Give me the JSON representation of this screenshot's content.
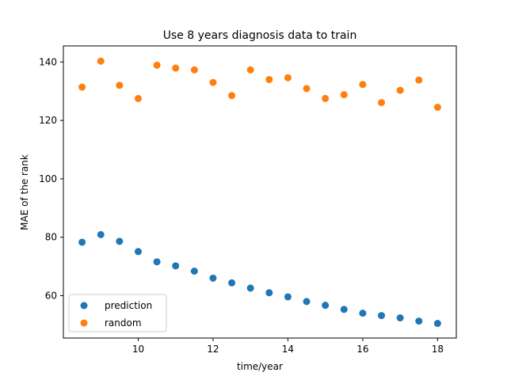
{
  "chart_data": {
    "type": "scatter",
    "title": "Use 8 years diagnosis data to train",
    "xlabel": "time/year",
    "ylabel": "MAE of the rank",
    "xlim": [
      8.0,
      18.5
    ],
    "ylim": [
      45.5,
      145.5
    ],
    "xticks": [
      10,
      12,
      14,
      16,
      18
    ],
    "yticks": [
      60,
      80,
      100,
      120,
      140
    ],
    "grid": false,
    "legend_position": "lower-left",
    "x": [
      8.5,
      9.0,
      9.5,
      10.0,
      10.5,
      11.0,
      11.5,
      12.0,
      12.5,
      13.0,
      13.5,
      14.0,
      14.5,
      15.0,
      15.5,
      16.0,
      16.5,
      17.0,
      17.5,
      18.0
    ],
    "series": [
      {
        "name": "prediction",
        "color": "#1f77b4",
        "values": [
          78.3,
          80.9,
          78.6,
          75.1,
          71.6,
          70.2,
          68.4,
          66.0,
          64.4,
          62.6,
          61.0,
          59.6,
          58.0,
          56.7,
          55.3,
          54.0,
          53.2,
          52.4,
          51.3,
          50.5
        ]
      },
      {
        "name": "random",
        "color": "#ff7f0e",
        "values": [
          131.4,
          140.3,
          132.0,
          127.5,
          138.9,
          137.9,
          137.3,
          133.0,
          128.5,
          137.3,
          134.0,
          134.6,
          130.9,
          127.5,
          128.8,
          132.3,
          126.1,
          130.3,
          133.8,
          124.5
        ]
      }
    ]
  }
}
